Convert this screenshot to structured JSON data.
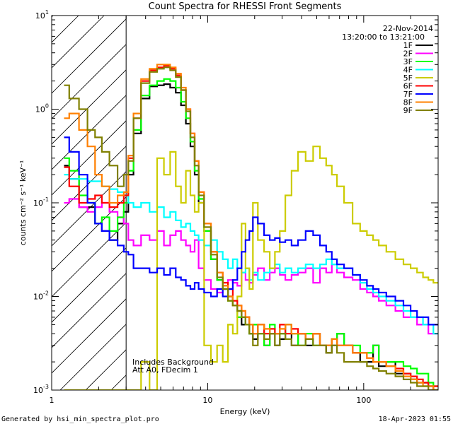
{
  "chart_data": {
    "type": "line",
    "title": "Count Spectra for RHESSI Front Segments",
    "xlabel": "Energy (keV)",
    "ylabel": "counts cm⁻² s⁻¹ keV⁻¹",
    "xscale": "log",
    "yscale": "log",
    "xlim": [
      1,
      300
    ],
    "ylim": [
      0.001,
      10
    ],
    "x_ticks": [
      {
        "value": 1,
        "label": "1"
      },
      {
        "value": 10,
        "label": "10"
      },
      {
        "value": 100,
        "label": "100"
      }
    ],
    "y_ticks": [
      {
        "value": 0.001,
        "base": "10",
        "exp": "-3"
      },
      {
        "value": 0.01,
        "base": "10",
        "exp": "-2"
      },
      {
        "value": 0.1,
        "base": "10",
        "exp": "-1"
      },
      {
        "value": 1,
        "base": "10",
        "exp": "0"
      },
      {
        "value": 10,
        "base": "10",
        "exp": "1"
      }
    ],
    "date": "22-Nov-2014",
    "time_range": "13:20:00 to 13:21:00",
    "notes": [
      "Includes Background",
      "Att A0, FDecim 1"
    ],
    "excluded_region_max_kev": 3,
    "legend_position": "top-right",
    "x": [
      1.2,
      1.4,
      1.6,
      1.8,
      2.0,
      2.2,
      2.5,
      2.8,
      3.0,
      3.2,
      3.5,
      4.0,
      4.5,
      5.0,
      5.5,
      6.0,
      6.5,
      7.0,
      7.5,
      8.0,
      8.5,
      9.0,
      10.0,
      11.0,
      12.0,
      13.0,
      14.0,
      15.0,
      16.0,
      17.0,
      18.0,
      19.0,
      20.0,
      22.0,
      24.0,
      26.0,
      28.0,
      30.0,
      33.0,
      36.0,
      40.0,
      45.0,
      50.0,
      55.0,
      60.0,
      65.0,
      70.0,
      80.0,
      90.0,
      100.0,
      110.0,
      120.0,
      130.0,
      150.0,
      170.0,
      190.0,
      210.0,
      230.0,
      250.0,
      270.0,
      290.0
    ],
    "series": [
      {
        "name": "1F",
        "color": "#000000",
        "values": [
          0.25,
          0.18,
          0.09,
          0.09,
          0.06,
          0.05,
          0.04,
          0.06,
          0.08,
          0.2,
          0.55,
          1.3,
          1.75,
          1.8,
          1.85,
          1.7,
          1.5,
          1.1,
          0.7,
          0.4,
          0.2,
          0.1,
          0.05,
          0.025,
          0.015,
          0.012,
          0.01,
          0.008,
          0.007,
          0.005,
          0.006,
          0.004,
          0.0035,
          0.005,
          0.003,
          0.004,
          0.003,
          0.0035,
          0.005,
          0.003,
          0.004,
          0.003,
          0.004,
          0.003,
          0.0025,
          0.003,
          0.004,
          0.003,
          0.0025,
          0.002,
          0.002,
          0.003,
          0.0018,
          0.002,
          0.0015,
          0.0015,
          0.0013,
          0.0012,
          0.0012,
          0.0011,
          0.001
        ]
      },
      {
        "name": "2F",
        "color": "#ff00ff",
        "values": [
          0.1,
          0.11,
          0.09,
          0.08,
          0.09,
          0.1,
          0.08,
          0.07,
          0.06,
          0.04,
          0.035,
          0.045,
          0.04,
          0.05,
          0.035,
          0.045,
          0.05,
          0.04,
          0.035,
          0.03,
          0.04,
          0.02,
          0.015,
          0.012,
          0.011,
          0.013,
          0.015,
          0.014,
          0.013,
          0.018,
          0.015,
          0.014,
          0.017,
          0.02,
          0.015,
          0.018,
          0.02,
          0.017,
          0.015,
          0.017,
          0.018,
          0.02,
          0.014,
          0.02,
          0.018,
          0.022,
          0.018,
          0.016,
          0.015,
          0.012,
          0.011,
          0.01,
          0.009,
          0.008,
          0.007,
          0.006,
          0.006,
          0.005,
          0.005,
          0.004,
          0.004
        ]
      },
      {
        "name": "3F",
        "color": "#00ff00",
        "values": [
          0.3,
          0.22,
          0.12,
          0.1,
          0.06,
          0.07,
          0.05,
          0.07,
          0.1,
          0.22,
          0.6,
          1.4,
          1.8,
          2.0,
          2.1,
          2.0,
          1.7,
          1.2,
          0.8,
          0.45,
          0.22,
          0.11,
          0.05,
          0.025,
          0.015,
          0.012,
          0.009,
          0.008,
          0.006,
          0.006,
          0.005,
          0.004,
          0.005,
          0.004,
          0.003,
          0.005,
          0.004,
          0.004,
          0.005,
          0.004,
          0.003,
          0.004,
          0.003,
          0.003,
          0.003,
          0.0035,
          0.004,
          0.003,
          0.003,
          0.0025,
          0.0025,
          0.003,
          0.002,
          0.002,
          0.002,
          0.0018,
          0.0017,
          0.0015,
          0.0015,
          0.0012,
          0.0011
        ]
      },
      {
        "name": "4F",
        "color": "#00ffff",
        "values": [
          0.2,
          0.18,
          0.18,
          0.17,
          0.17,
          0.15,
          0.14,
          0.13,
          0.12,
          0.1,
          0.09,
          0.1,
          0.08,
          0.09,
          0.07,
          0.08,
          0.065,
          0.055,
          0.06,
          0.05,
          0.045,
          0.04,
          0.035,
          0.04,
          0.03,
          0.025,
          0.02,
          0.025,
          0.02,
          0.018,
          0.02,
          0.015,
          0.018,
          0.015,
          0.018,
          0.02,
          0.022,
          0.018,
          0.02,
          0.018,
          0.02,
          0.022,
          0.02,
          0.022,
          0.025,
          0.022,
          0.02,
          0.02,
          0.017,
          0.014,
          0.012,
          0.011,
          0.01,
          0.009,
          0.008,
          0.007,
          0.006,
          0.006,
          0.005,
          0.005,
          0.004
        ]
      },
      {
        "name": "5F",
        "color": "#cccc00",
        "values": [
          0.001,
          0.001,
          0.001,
          0.001,
          0.001,
          0.001,
          0.001,
          0.001,
          0.001,
          0.001,
          0.001,
          0.002,
          0.001,
          0.3,
          0.2,
          0.35,
          0.15,
          0.1,
          0.22,
          0.12,
          0.08,
          0.1,
          0.003,
          0.002,
          0.003,
          0.002,
          0.005,
          0.004,
          0.01,
          0.06,
          0.02,
          0.012,
          0.1,
          0.04,
          0.03,
          0.02,
          0.03,
          0.05,
          0.12,
          0.22,
          0.35,
          0.28,
          0.4,
          0.3,
          0.25,
          0.2,
          0.15,
          0.1,
          0.06,
          0.05,
          0.045,
          0.04,
          0.035,
          0.03,
          0.025,
          0.022,
          0.02,
          0.018,
          0.016,
          0.015,
          0.014
        ]
      },
      {
        "name": "6F",
        "color": "#ff0000",
        "values": [
          0.24,
          0.15,
          0.1,
          0.11,
          0.12,
          0.1,
          0.09,
          0.1,
          0.12,
          0.3,
          0.8,
          2.0,
          2.6,
          2.8,
          2.9,
          2.7,
          2.3,
          1.6,
          1.0,
          0.55,
          0.28,
          0.13,
          0.06,
          0.03,
          0.018,
          0.014,
          0.012,
          0.009,
          0.008,
          0.007,
          0.006,
          0.005,
          0.004,
          0.005,
          0.004,
          0.0045,
          0.004,
          0.005,
          0.004,
          0.0045,
          0.004,
          0.0035,
          0.004,
          0.003,
          0.003,
          0.0035,
          0.003,
          0.003,
          0.0025,
          0.0025,
          0.0022,
          0.002,
          0.002,
          0.0018,
          0.0017,
          0.0015,
          0.0014,
          0.0013,
          0.0012,
          0.0011,
          0.0011
        ]
      },
      {
        "name": "7F",
        "color": "#0000ff",
        "values": [
          0.5,
          0.35,
          0.2,
          0.1,
          0.06,
          0.05,
          0.04,
          0.035,
          0.03,
          0.028,
          0.02,
          0.02,
          0.018,
          0.02,
          0.017,
          0.02,
          0.016,
          0.015,
          0.013,
          0.012,
          0.014,
          0.012,
          0.011,
          0.01,
          0.012,
          0.01,
          0.012,
          0.015,
          0.02,
          0.03,
          0.04,
          0.05,
          0.07,
          0.06,
          0.045,
          0.04,
          0.042,
          0.038,
          0.04,
          0.035,
          0.04,
          0.05,
          0.045,
          0.035,
          0.03,
          0.025,
          0.022,
          0.02,
          0.017,
          0.015,
          0.013,
          0.012,
          0.011,
          0.01,
          0.009,
          0.008,
          0.007,
          0.006,
          0.006,
          0.005,
          0.005
        ]
      },
      {
        "name": "8F",
        "color": "#ff8000",
        "values": [
          0.8,
          0.9,
          0.6,
          0.4,
          0.2,
          0.15,
          0.1,
          0.12,
          0.13,
          0.32,
          0.9,
          2.1,
          2.7,
          3.0,
          3.0,
          2.8,
          2.4,
          1.7,
          1.0,
          0.55,
          0.28,
          0.13,
          0.06,
          0.03,
          0.018,
          0.013,
          0.01,
          0.008,
          0.008,
          0.007,
          0.006,
          0.005,
          0.004,
          0.005,
          0.0045,
          0.004,
          0.004,
          0.0045,
          0.005,
          0.004,
          0.004,
          0.0035,
          0.004,
          0.003,
          0.003,
          0.0035,
          0.003,
          0.003,
          0.0025,
          0.0025,
          0.0022,
          0.002,
          0.002,
          0.0018,
          0.0016,
          0.0014,
          0.0013,
          0.0012,
          0.0011,
          0.0011,
          0.001
        ]
      },
      {
        "name": "9F",
        "color": "#808000",
        "values": [
          1.8,
          1.3,
          1.0,
          0.6,
          0.5,
          0.35,
          0.25,
          0.15,
          0.2,
          0.28,
          0.8,
          1.9,
          2.5,
          2.7,
          2.8,
          2.6,
          2.2,
          1.6,
          0.95,
          0.5,
          0.25,
          0.12,
          0.055,
          0.028,
          0.016,
          0.012,
          0.009,
          0.008,
          0.007,
          0.006,
          0.005,
          0.004,
          0.003,
          0.004,
          0.0035,
          0.004,
          0.003,
          0.004,
          0.0035,
          0.003,
          0.003,
          0.0035,
          0.003,
          0.003,
          0.0025,
          0.003,
          0.0025,
          0.002,
          0.002,
          0.002,
          0.0018,
          0.0017,
          0.0016,
          0.0015,
          0.0014,
          0.0013,
          0.0012,
          0.0011,
          0.0011,
          0.001,
          0.001
        ]
      }
    ]
  },
  "footer": {
    "generated_by": "Generated by hsi_min_spectra_plot.pro",
    "timestamp": "18-Apr-2023 01:55"
  }
}
